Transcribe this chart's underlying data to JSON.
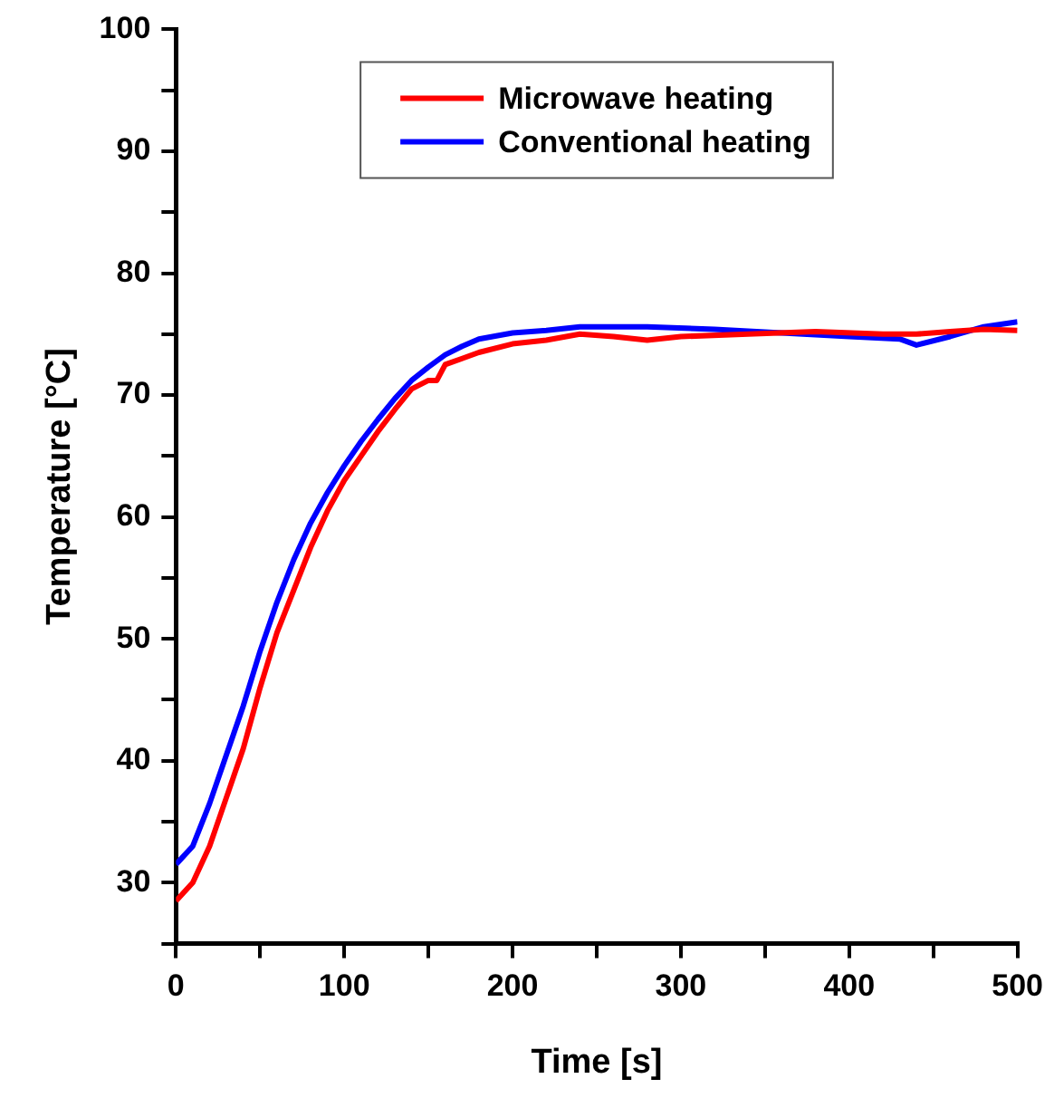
{
  "chart_data": {
    "type": "line",
    "xlabel": "Time [s]",
    "ylabel": "Temperature [°C]",
    "xlim": [
      0,
      500
    ],
    "xticks": [
      0,
      {
        "value": 50,
        "label": null
      },
      100,
      {
        "value": 150,
        "label": null
      },
      200,
      {
        "value": 250,
        "label": null
      },
      300,
      {
        "value": 350,
        "label": null
      },
      400,
      {
        "value": 450,
        "label": null
      },
      500
    ],
    "ylim": [
      25,
      100
    ],
    "yticks": [
      {
        "value": 25,
        "label": null
      },
      30,
      {
        "value": 35,
        "label": null
      },
      40,
      {
        "value": 45,
        "label": null
      },
      50,
      {
        "value": 55,
        "label": null
      },
      60,
      {
        "value": 65,
        "label": null
      },
      70,
      {
        "value": 75,
        "label": null
      },
      80,
      {
        "value": 85,
        "label": null
      },
      90,
      {
        "value": 95,
        "label": null
      },
      100
    ],
    "grid": false,
    "legend": "top",
    "marker": "none",
    "line_style": "solid",
    "series": [
      {
        "name": "Microwave heating",
        "color": "#ff0000",
        "x": [
          0,
          10,
          20,
          30,
          40,
          50,
          60,
          70,
          80,
          90,
          100,
          110,
          120,
          130,
          140,
          150,
          155,
          160,
          170,
          180,
          200,
          220,
          240,
          260,
          280,
          300,
          340,
          380,
          420,
          440,
          460,
          480,
          500
        ],
        "values": [
          28.5,
          30,
          33,
          37,
          41,
          46,
          50.5,
          54,
          57.5,
          60.5,
          63,
          65,
          67,
          68.8,
          70.5,
          71.2,
          71.2,
          72.5,
          73,
          73.5,
          74.2,
          74.5,
          75,
          74.8,
          74.5,
          74.8,
          75,
          75.2,
          75,
          75,
          75.2,
          75.4,
          75.3
        ]
      },
      {
        "name": "Conventional heating",
        "color": "#0000ff",
        "x": [
          0,
          10,
          20,
          30,
          40,
          50,
          60,
          70,
          80,
          90,
          100,
          110,
          120,
          130,
          140,
          150,
          160,
          170,
          180,
          200,
          220,
          240,
          280,
          320,
          360,
          400,
          430,
          440,
          460,
          480,
          500
        ],
        "values": [
          31.5,
          33,
          36.5,
          40.5,
          44.5,
          49,
          53,
          56.5,
          59.5,
          62,
          64.2,
          66.2,
          68,
          69.7,
          71.2,
          72.3,
          73.3,
          74,
          74.6,
          75.1,
          75.3,
          75.6,
          75.6,
          75.4,
          75.1,
          74.8,
          74.6,
          74.1,
          74.8,
          75.6,
          76
        ]
      }
    ]
  }
}
